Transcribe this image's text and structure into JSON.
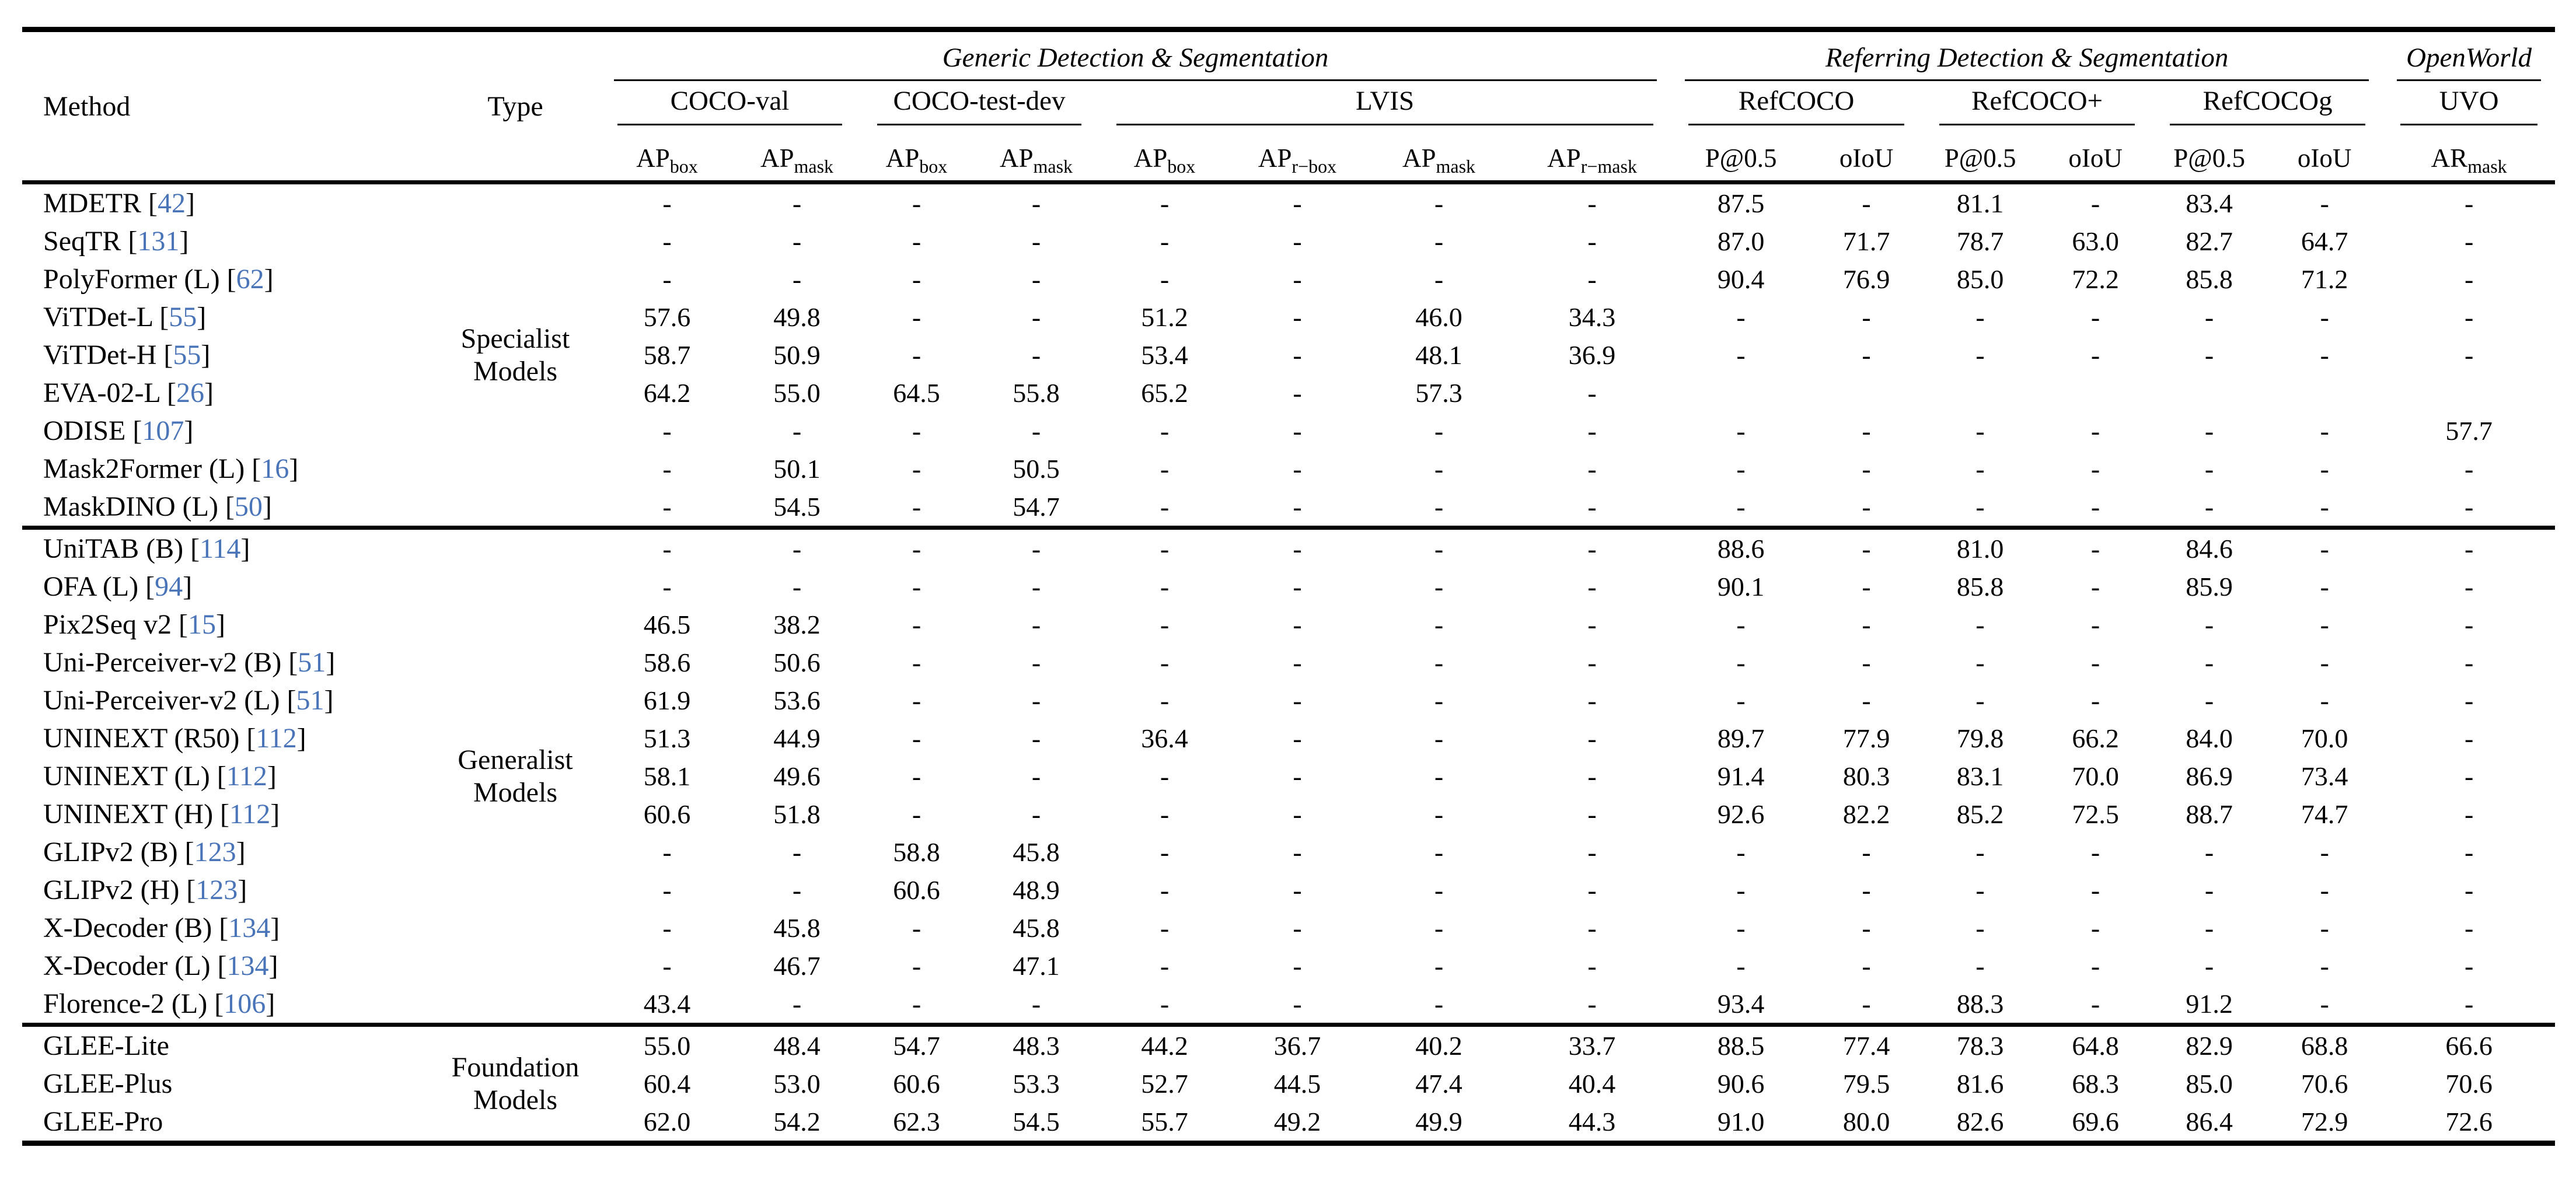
{
  "table": {
    "col_headers": {
      "method": "Method",
      "type": "Type",
      "groups": [
        {
          "label": "Generic Detection & Segmentation",
          "datasets": [
            {
              "label": "COCO-val",
              "metrics": [
                {
                  "t": "AP",
                  "sub": "box"
                },
                {
                  "t": "AP",
                  "sub": "mask"
                }
              ]
            },
            {
              "label": "COCO-test-dev",
              "metrics": [
                {
                  "t": "AP",
                  "sub": "box"
                },
                {
                  "t": "AP",
                  "sub": "mask"
                }
              ]
            },
            {
              "label": "LVIS",
              "metrics": [
                {
                  "t": "AP",
                  "sub": "box"
                },
                {
                  "t": "AP",
                  "sub": "r−box"
                },
                {
                  "t": "AP",
                  "sub": "mask"
                },
                {
                  "t": "AP",
                  "sub": "r−mask"
                }
              ]
            }
          ]
        },
        {
          "label": "Referring Detection & Segmentation",
          "datasets": [
            {
              "label": "RefCOCO",
              "metrics": [
                {
                  "t": "P@0.5"
                },
                {
                  "t": "oIoU"
                }
              ]
            },
            {
              "label": "RefCOCO+",
              "metrics": [
                {
                  "t": "P@0.5"
                },
                {
                  "t": "oIoU"
                }
              ]
            },
            {
              "label": "RefCOCOg",
              "metrics": [
                {
                  "t": "P@0.5"
                },
                {
                  "t": "oIoU"
                }
              ]
            }
          ]
        },
        {
          "label": "OpenWorld",
          "datasets": [
            {
              "label": "UVO",
              "metrics": [
                {
                  "t": "AR",
                  "sub": "mask"
                }
              ]
            }
          ]
        }
      ]
    },
    "sections": [
      {
        "type_label": "Specialist\nModels",
        "rows": [
          {
            "method": "MDETR",
            "cite": "42",
            "values": [
              "-",
              "-",
              "-",
              "-",
              "-",
              "-",
              "-",
              "-",
              "87.5",
              "-",
              "81.1",
              "-",
              "83.4",
              "-",
              "-"
            ]
          },
          {
            "method": "SeqTR",
            "cite": "131",
            "values": [
              "-",
              "-",
              "-",
              "-",
              "-",
              "-",
              "-",
              "-",
              "87.0",
              "71.7",
              "78.7",
              "63.0",
              "82.7",
              "64.7",
              "-"
            ]
          },
          {
            "method": "PolyFormer (L)",
            "cite": "62",
            "values": [
              "-",
              "-",
              "-",
              "-",
              "-",
              "-",
              "-",
              "-",
              "90.4",
              "76.9",
              "85.0",
              "72.2",
              "85.8",
              "71.2",
              "-"
            ]
          },
          {
            "method": "ViTDet-L",
            "cite": "55",
            "values": [
              "57.6",
              "49.8",
              "-",
              "-",
              "51.2",
              "-",
              "46.0",
              "34.3",
              "-",
              "-",
              "-",
              "-",
              "-",
              "-",
              "-"
            ]
          },
          {
            "method": "ViTDet-H",
            "cite": "55",
            "values": [
              "58.7",
              "50.9",
              "-",
              "-",
              "53.4",
              "-",
              "48.1",
              "36.9",
              "-",
              "-",
              "-",
              "-",
              "-",
              "-",
              "-"
            ]
          },
          {
            "method": "EVA-02-L",
            "cite": "26",
            "values": [
              "64.2",
              "55.0",
              "64.5",
              "55.8",
              "65.2",
              "-",
              "57.3",
              "-",
              "",
              "",
              "",
              "",
              "",
              "",
              ""
            ]
          },
          {
            "method": "ODISE",
            "cite": "107",
            "values": [
              "-",
              "-",
              "-",
              "-",
              "-",
              "-",
              "-",
              "-",
              "-",
              "-",
              "-",
              "-",
              "-",
              "-",
              "57.7"
            ]
          },
          {
            "method": "Mask2Former (L)",
            "cite": "16",
            "values": [
              "-",
              "50.1",
              "-",
              "50.5",
              "-",
              "-",
              "-",
              "-",
              "-",
              "-",
              "-",
              "-",
              "-",
              "-",
              "-"
            ]
          },
          {
            "method": "MaskDINO (L)",
            "cite": "50",
            "values": [
              "-",
              "54.5",
              "-",
              "54.7",
              "-",
              "-",
              "-",
              "-",
              "-",
              "-",
              "-",
              "-",
              "-",
              "-",
              "-"
            ]
          }
        ]
      },
      {
        "type_label": "Generalist\nModels",
        "rows": [
          {
            "method": "UniTAB (B)",
            "cite": "114",
            "values": [
              "-",
              "-",
              "-",
              "-",
              "-",
              "-",
              "-",
              "-",
              "88.6",
              "-",
              "81.0",
              "-",
              "84.6",
              "-",
              "-"
            ]
          },
          {
            "method": "OFA (L)",
            "cite": "94",
            "values": [
              "-",
              "-",
              "-",
              "-",
              "-",
              "-",
              "-",
              "-",
              "90.1",
              "-",
              "85.8",
              "-",
              "85.9",
              "-",
              "-"
            ]
          },
          {
            "method": "Pix2Seq v2",
            "cite": "15",
            "values": [
              "46.5",
              "38.2",
              "-",
              "-",
              "-",
              "-",
              "-",
              "-",
              "-",
              "-",
              "-",
              "-",
              "-",
              "-",
              "-"
            ]
          },
          {
            "method": "Uni-Perceiver-v2 (B)",
            "cite": "51",
            "values": [
              "58.6",
              "50.6",
              "-",
              "-",
              "-",
              "-",
              "-",
              "-",
              "-",
              "-",
              "-",
              "-",
              "-",
              "-",
              "-"
            ]
          },
          {
            "method": "Uni-Perceiver-v2 (L)",
            "cite": "51",
            "values": [
              "61.9",
              "53.6",
              "-",
              "-",
              "-",
              "-",
              "-",
              "-",
              "-",
              "-",
              "-",
              "-",
              "-",
              "-",
              "-"
            ]
          },
          {
            "method": "UNINEXT (R50)",
            "cite": "112",
            "values": [
              "51.3",
              "44.9",
              "-",
              "-",
              "36.4",
              "-",
              "-",
              "-",
              "89.7",
              "77.9",
              "79.8",
              "66.2",
              "84.0",
              "70.0",
              "-"
            ]
          },
          {
            "method": "UNINEXT (L)",
            "cite": "112",
            "values": [
              "58.1",
              "49.6",
              "-",
              "-",
              "-",
              "-",
              "-",
              "-",
              "91.4",
              "80.3",
              "83.1",
              "70.0",
              "86.9",
              "73.4",
              "-"
            ]
          },
          {
            "method": "UNINEXT (H)",
            "cite": "112",
            "values": [
              "60.6",
              "51.8",
              "-",
              "-",
              "-",
              "-",
              "-",
              "-",
              "92.6",
              "82.2",
              "85.2",
              "72.5",
              "88.7",
              "74.7",
              "-"
            ]
          },
          {
            "method": "GLIPv2 (B)",
            "cite": "123",
            "values": [
              "-",
              "-",
              "58.8",
              "45.8",
              "-",
              "-",
              "-",
              "-",
              "-",
              "-",
              "-",
              "-",
              "-",
              "-",
              "-"
            ]
          },
          {
            "method": "GLIPv2 (H)",
            "cite": "123",
            "values": [
              "-",
              "-",
              "60.6",
              "48.9",
              "-",
              "-",
              "-",
              "-",
              "-",
              "-",
              "-",
              "-",
              "-",
              "-",
              "-"
            ]
          },
          {
            "method": "X-Decoder (B)",
            "cite": "134",
            "values": [
              "-",
              "45.8",
              "-",
              "45.8",
              "-",
              "-",
              "-",
              "-",
              "-",
              "-",
              "-",
              "-",
              "-",
              "-",
              "-"
            ]
          },
          {
            "method": "X-Decoder (L)",
            "cite": "134",
            "values": [
              "-",
              "46.7",
              "-",
              "47.1",
              "-",
              "-",
              "-",
              "-",
              "-",
              "-",
              "-",
              "-",
              "-",
              "-",
              "-"
            ]
          },
          {
            "method": "Florence-2 (L)",
            "cite": "106",
            "values": [
              "43.4",
              "-",
              "-",
              "-",
              "-",
              "-",
              "-",
              "-",
              "93.4",
              "-",
              "88.3",
              "-",
              "91.2",
              "-",
              "-"
            ]
          }
        ]
      },
      {
        "type_label": "Foundation\nModels",
        "rows": [
          {
            "method": "GLEE-Lite",
            "cite": null,
            "values": [
              "55.0",
              "48.4",
              "54.7",
              "48.3",
              "44.2",
              "36.7",
              "40.2",
              "33.7",
              "88.5",
              "77.4",
              "78.3",
              "64.8",
              "82.9",
              "68.8",
              "66.6"
            ]
          },
          {
            "method": "GLEE-Plus",
            "cite": null,
            "values": [
              "60.4",
              "53.0",
              "60.6",
              "53.3",
              "52.7",
              "44.5",
              "47.4",
              "40.4",
              "90.6",
              "79.5",
              "81.6",
              "68.3",
              "85.0",
              "70.6",
              "70.6"
            ]
          },
          {
            "method": "GLEE-Pro",
            "cite": null,
            "values": [
              "62.0",
              "54.2",
              "62.3",
              "54.5",
              "55.7",
              "49.2",
              "49.9",
              "44.3",
              "91.0",
              "80.0",
              "82.6",
              "69.6",
              "86.4",
              "72.9",
              "72.6"
            ]
          }
        ]
      }
    ]
  },
  "colors": {
    "citation_blue": "#4a74b8",
    "text": "#000000"
  }
}
